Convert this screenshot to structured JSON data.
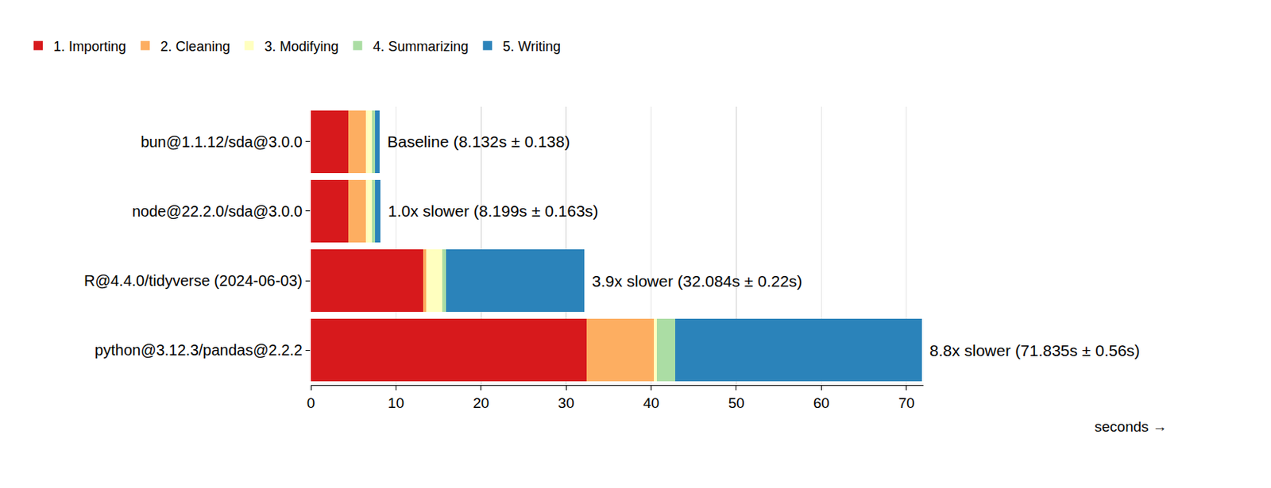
{
  "chart_data": {
    "type": "bar",
    "orientation": "horizontal",
    "stacked": true,
    "grid": true,
    "legend": "top-left",
    "x_label": "seconds →",
    "categories": [
      "bun@1.1.12/sda@3.0.0",
      "node@22.2.0/sda@3.0.0",
      "R@4.4.0/tidyverse (2024-06-03)",
      "python@3.12.3/pandas@2.2.2"
    ],
    "series": [
      {
        "name": "1. Importing",
        "color": "#d7191c",
        "values": [
          4.4,
          4.4,
          13.2,
          32.4
        ]
      },
      {
        "name": "2. Cleaning",
        "color": "#fdae61",
        "values": [
          2.1,
          2.1,
          0.4,
          7.9
        ]
      },
      {
        "name": "3. Modifying",
        "color": "#ffffbf",
        "values": [
          0.7,
          0.7,
          1.8,
          0.4
        ]
      },
      {
        "name": "4. Summarizing",
        "color": "#abdda4",
        "values": [
          0.3,
          0.3,
          0.5,
          2.1
        ]
      },
      {
        "name": "5. Writing",
        "color": "#2b83ba",
        "values": [
          0.6,
          0.7,
          16.2,
          29.0
        ]
      }
    ],
    "annotations": [
      "Baseline (8.132s ± 0.138)",
      "1.0x slower (8.199s ± 0.163s)",
      "3.9x slower (32.084s ± 0.22s)",
      "8.8x slower (71.835s ± 0.56s)"
    ],
    "xlim": [
      0,
      72
    ],
    "xticks": [
      0,
      10,
      20,
      30,
      40,
      50,
      60,
      70
    ]
  }
}
